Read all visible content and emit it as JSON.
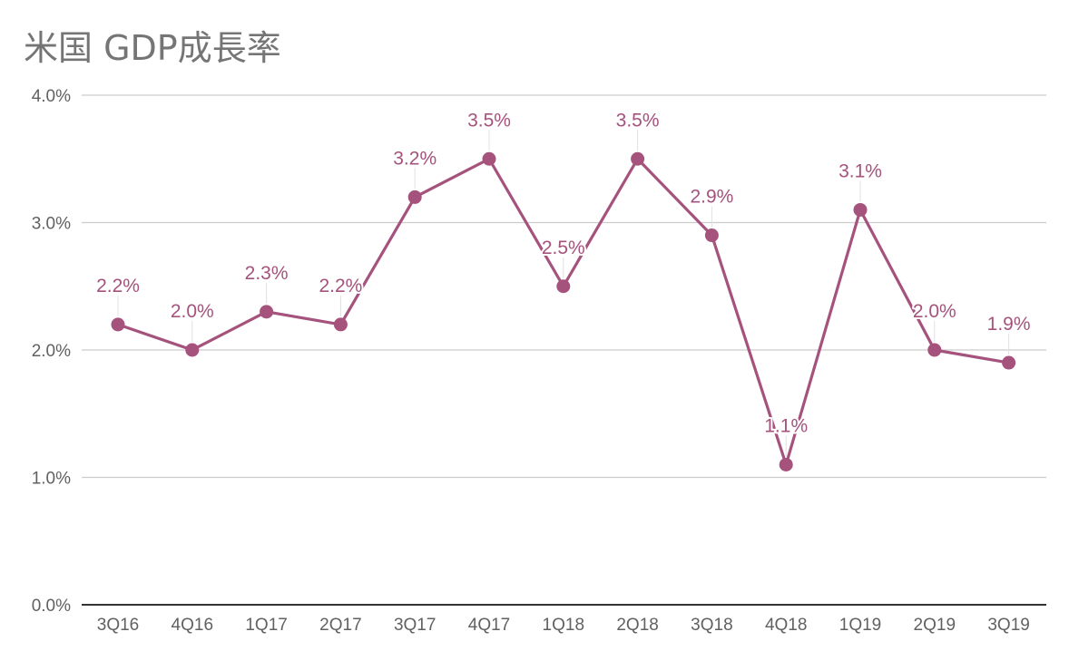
{
  "chart_data": {
    "type": "line",
    "title": "米国 GDP成長率",
    "xlabel": "",
    "ylabel": "",
    "categories": [
      "3Q16",
      "4Q16",
      "1Q17",
      "2Q17",
      "3Q17",
      "4Q17",
      "1Q18",
      "2Q18",
      "3Q18",
      "4Q18",
      "1Q19",
      "2Q19",
      "3Q19"
    ],
    "series": [
      {
        "values": [
          2.2,
          2.0,
          2.3,
          2.2,
          3.2,
          3.5,
          2.5,
          3.5,
          2.9,
          1.1,
          3.1,
          2.0,
          1.9
        ]
      }
    ],
    "data_labels": [
      "2.2%",
      "2.0%",
      "2.3%",
      "2.2%",
      "3.2%",
      "3.5%",
      "2.5%",
      "3.5%",
      "2.9%",
      "1.1%",
      "3.1%",
      "2.0%",
      "1.9%"
    ],
    "y_ticks": [
      0,
      1,
      2,
      3,
      4
    ],
    "y_tick_labels": [
      "0.0%",
      "1.0%",
      "2.0%",
      "3.0%",
      "4.0%"
    ],
    "ylim": [
      0,
      4
    ],
    "grid": true,
    "legend": "none",
    "colors": {
      "series": "#a5527d",
      "grid": "#cccccc",
      "axis": "#333333",
      "title": "#757575",
      "tick_text": "#616161"
    }
  }
}
